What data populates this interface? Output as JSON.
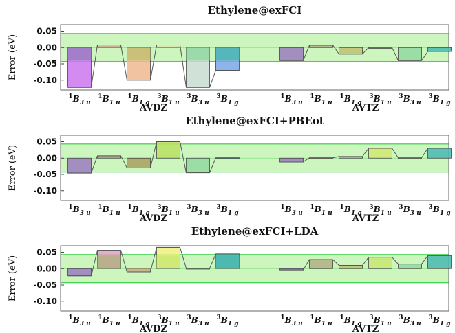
{
  "chart_data": [
    {
      "type": "bar",
      "title": "Ethylene@exFCI",
      "ylabel": "Error (eV)",
      "ylim": [
        -0.13,
        0.07
      ],
      "yticks": [
        "0.05",
        "0.00",
        "-0.05",
        "-0.10"
      ],
      "band": [
        -0.043,
        0.043
      ],
      "groups": [
        "AVDZ",
        "AVTZ"
      ],
      "categories": [
        {
          "base": "B",
          "pre": "1",
          "sub": "3 u"
        },
        {
          "base": "B",
          "pre": "1",
          "sub": "1 u"
        },
        {
          "base": "B",
          "pre": "1",
          "sub": "1 g"
        },
        {
          "base": "B",
          "pre": "3",
          "sub": "1 u"
        },
        {
          "base": "B",
          "pre": "3",
          "sub": "3 u"
        },
        {
          "base": "B",
          "pre": "3",
          "sub": "1 g"
        }
      ],
      "series": [
        {
          "group": "AVDZ",
          "values": [
            -0.122,
            0.008,
            -0.1,
            0.008,
            -0.122,
            -0.07
          ],
          "colors": [
            "#cc77ee",
            "#f0b0a0",
            "#f0b890",
            "#f0e0b8",
            "#c8dcd0",
            "#7aa8e8"
          ],
          "overlays": [
            -0.04,
            0.004,
            -0.04,
            0.004,
            -0.04,
            -0.04
          ],
          "overlay_colors": [
            "#9a7cc0",
            "#b0b080",
            "#c0c070",
            "#d0e0a0",
            "#90d8a0",
            "#48b8b0"
          ]
        },
        {
          "group": "AVTZ",
          "values": [
            -0.04,
            0.007,
            -0.02,
            0.0,
            -0.04,
            -0.012
          ],
          "colors": [
            "#9a7cc0",
            "#b0b080",
            "#c0c070",
            "#d0e0a0",
            "#90d8a0",
            "#48b8b0"
          ]
        }
      ]
    },
    {
      "type": "bar",
      "title": "Ethylene@exFCI+PBEot",
      "ylabel": "Error (eV)",
      "ylim": [
        -0.13,
        0.07
      ],
      "yticks": [
        "0.05",
        "0.00",
        "-0.05",
        "-0.10"
      ],
      "band": [
        -0.043,
        0.043
      ],
      "groups": [
        "AVDZ",
        "AVTZ"
      ],
      "categories": [
        {
          "base": "B",
          "pre": "1",
          "sub": "3 u"
        },
        {
          "base": "B",
          "pre": "1",
          "sub": "1 u"
        },
        {
          "base": "B",
          "pre": "1",
          "sub": "1 g"
        },
        {
          "base": "B",
          "pre": "3",
          "sub": "1 u"
        },
        {
          "base": "B",
          "pre": "3",
          "sub": "3 u"
        },
        {
          "base": "B",
          "pre": "3",
          "sub": "1 g"
        }
      ],
      "series": [
        {
          "group": "AVDZ",
          "values": [
            -0.046,
            0.007,
            -0.03,
            0.05,
            -0.045,
            0.001
          ],
          "colors": [
            "#9a7cc0",
            "#b0b080",
            "#a8a060",
            "#b8e060",
            "#90d8a0",
            "#48b8b0"
          ]
        },
        {
          "group": "AVTZ",
          "values": [
            -0.012,
            0.001,
            0.005,
            0.03,
            0.001,
            0.03
          ],
          "colors": [
            "#9a7cc0",
            "#b0b080",
            "#c0c070",
            "#d0e870",
            "#90d8a0",
            "#48b8b0"
          ]
        }
      ]
    },
    {
      "type": "bar",
      "title": "Ethylene@exFCI+LDA",
      "ylabel": "Error (eV)",
      "ylim": [
        -0.13,
        0.07
      ],
      "yticks": [
        "0.05",
        "0.00",
        "-0.05",
        "-0.10"
      ],
      "band": [
        -0.043,
        0.043
      ],
      "groups": [
        "AVDZ",
        "AVTZ"
      ],
      "categories": [
        {
          "base": "B",
          "pre": "1",
          "sub": "3 u"
        },
        {
          "base": "B",
          "pre": "1",
          "sub": "1 u"
        },
        {
          "base": "B",
          "pre": "1",
          "sub": "1 g"
        },
        {
          "base": "B",
          "pre": "3",
          "sub": "1 u"
        },
        {
          "base": "B",
          "pre": "3",
          "sub": "3 u"
        },
        {
          "base": "B",
          "pre": "3",
          "sub": "1 g"
        }
      ],
      "series": [
        {
          "group": "AVDZ",
          "values": [
            -0.022,
            0.056,
            -0.01,
            0.065,
            0.001,
            0.045
          ],
          "colors": [
            "#9a7cc0",
            "#e0a0c0",
            "#c8a890",
            "#f0f080",
            "#90d8a0",
            "#48b8b0"
          ],
          "overlays": [
            0,
            0.04,
            -0.004,
            0.04,
            0,
            0.04
          ],
          "overlay_colors": [
            "#9a7cc0",
            "#b0b080",
            "#c0c070",
            "#c8e870",
            "#90d8a0",
            "#48b8b0"
          ]
        },
        {
          "group": "AVTZ",
          "values": [
            -0.004,
            0.028,
            0.01,
            0.035,
            0.014,
            0.04
          ],
          "colors": [
            "#9a7cc0",
            "#b0b080",
            "#c0c070",
            "#c8e870",
            "#90d8a0",
            "#48b8b0"
          ]
        }
      ]
    }
  ]
}
